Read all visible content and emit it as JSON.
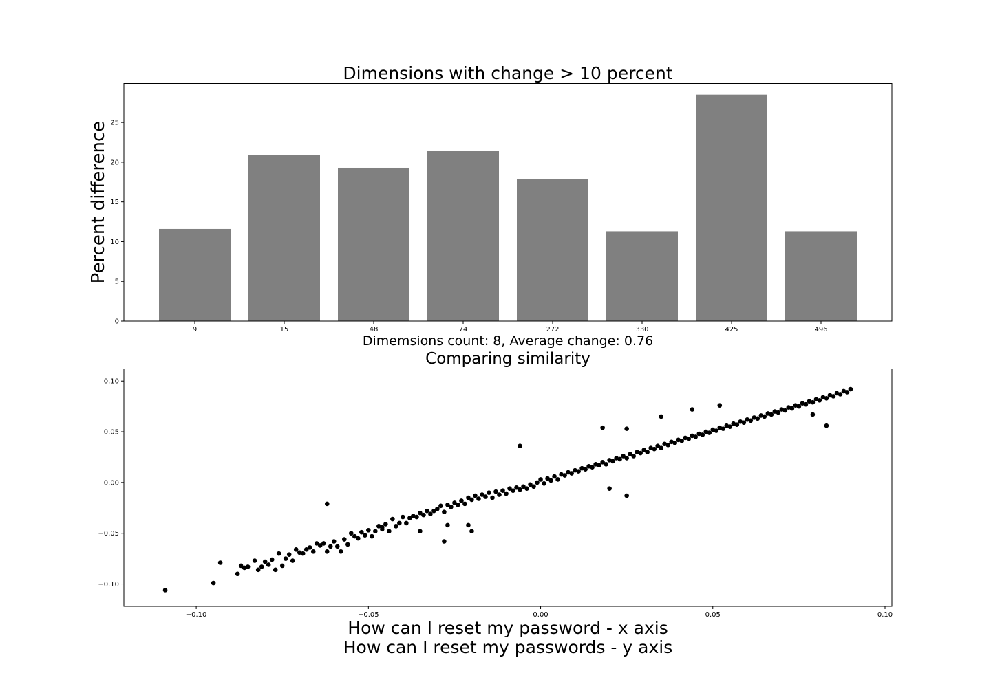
{
  "chart_data": [
    {
      "type": "bar",
      "title": "Dimensions with change > 10 percent",
      "xlabel": "Dimemsions count: 8, Average change: 0.76",
      "ylabel": "Percent difference",
      "categories": [
        "9",
        "15",
        "48",
        "74",
        "272",
        "330",
        "425",
        "496"
      ],
      "values": [
        11.6,
        20.9,
        19.3,
        21.4,
        17.9,
        11.3,
        28.5,
        11.3
      ],
      "ylim": [
        0,
        29.9
      ],
      "yticks": [
        0,
        5,
        10,
        15,
        20,
        25
      ],
      "bar_color": "#808080",
      "grid": false
    },
    {
      "type": "scatter",
      "title": "Comparing similarity",
      "xlabel": "How can I reset my password - x axis\nHow can I reset my passwords - y axis",
      "ylabel": "",
      "xlim": [
        -0.121,
        0.102
      ],
      "ylim": [
        -0.122,
        0.112
      ],
      "xticks": [
        -0.1,
        -0.05,
        0.0,
        0.05,
        0.1
      ],
      "yticks": [
        -0.1,
        -0.05,
        0.0,
        0.05,
        0.1
      ],
      "marker_color": "#000000",
      "grid": false,
      "x": [
        -0.109,
        -0.095,
        -0.093,
        -0.088,
        -0.087,
        -0.086,
        -0.085,
        -0.083,
        -0.082,
        -0.081,
        -0.08,
        -0.079,
        -0.078,
        -0.077,
        -0.076,
        -0.075,
        -0.074,
        -0.073,
        -0.072,
        -0.071,
        -0.07,
        -0.069,
        -0.068,
        -0.067,
        -0.066,
        -0.065,
        -0.064,
        -0.063,
        -0.062,
        -0.061,
        -0.06,
        -0.059,
        -0.058,
        -0.057,
        -0.056,
        -0.055,
        -0.054,
        -0.053,
        -0.052,
        -0.051,
        -0.05,
        -0.049,
        -0.048,
        -0.047,
        -0.046,
        -0.045,
        -0.044,
        -0.043,
        -0.042,
        -0.041,
        -0.04,
        -0.039,
        -0.038,
        -0.037,
        -0.036,
        -0.035,
        -0.034,
        -0.033,
        -0.032,
        -0.031,
        -0.03,
        -0.029,
        -0.028,
        -0.027,
        -0.026,
        -0.025,
        -0.024,
        -0.023,
        -0.022,
        -0.021,
        -0.02,
        -0.019,
        -0.018,
        -0.017,
        -0.016,
        -0.015,
        -0.014,
        -0.013,
        -0.012,
        -0.011,
        -0.01,
        -0.009,
        -0.008,
        -0.007,
        -0.006,
        -0.005,
        -0.004,
        -0.003,
        -0.002,
        -0.001,
        0.0,
        0.001,
        0.002,
        0.003,
        0.004,
        0.005,
        0.006,
        0.007,
        0.008,
        0.009,
        0.01,
        0.011,
        0.012,
        0.013,
        0.014,
        0.015,
        0.016,
        0.017,
        0.018,
        0.019,
        0.02,
        0.021,
        0.022,
        0.023,
        0.024,
        0.025,
        0.026,
        0.027,
        0.028,
        0.029,
        0.03,
        0.031,
        0.032,
        0.033,
        0.034,
        0.035,
        0.036,
        0.037,
        0.038,
        0.039,
        0.04,
        0.041,
        0.042,
        0.043,
        0.044,
        0.045,
        0.046,
        0.047,
        0.048,
        0.049,
        0.05,
        0.051,
        0.052,
        0.053,
        0.054,
        0.055,
        0.056,
        0.057,
        0.058,
        0.059,
        0.06,
        0.061,
        0.062,
        0.063,
        0.064,
        0.065,
        0.066,
        0.067,
        0.068,
        0.069,
        0.07,
        0.071,
        0.072,
        0.073,
        0.074,
        0.075,
        0.076,
        0.077,
        0.078,
        0.079,
        0.08,
        0.081,
        0.082,
        0.083,
        0.084,
        0.085,
        0.086,
        0.087,
        0.088,
        0.089,
        0.09,
        -0.062,
        -0.046,
        -0.035,
        -0.028,
        -0.02,
        -0.006,
        0.018,
        0.025,
        0.035,
        0.044,
        0.052,
        0.079,
        0.083,
        -0.027,
        -0.021,
        0.02,
        0.025
      ],
      "y": [
        -0.106,
        -0.099,
        -0.079,
        -0.09,
        -0.082,
        -0.084,
        -0.083,
        -0.077,
        -0.086,
        -0.083,
        -0.078,
        -0.081,
        -0.076,
        -0.086,
        -0.07,
        -0.082,
        -0.075,
        -0.071,
        -0.077,
        -0.066,
        -0.069,
        -0.07,
        -0.066,
        -0.064,
        -0.068,
        -0.06,
        -0.062,
        -0.06,
        -0.068,
        -0.063,
        -0.058,
        -0.063,
        -0.068,
        -0.056,
        -0.061,
        -0.05,
        -0.053,
        -0.055,
        -0.049,
        -0.052,
        -0.047,
        -0.053,
        -0.048,
        -0.043,
        -0.046,
        -0.041,
        -0.048,
        -0.036,
        -0.043,
        -0.04,
        -0.034,
        -0.04,
        -0.035,
        -0.033,
        -0.034,
        -0.03,
        -0.032,
        -0.028,
        -0.031,
        -0.028,
        -0.026,
        -0.023,
        -0.029,
        -0.022,
        -0.024,
        -0.02,
        -0.022,
        -0.018,
        -0.021,
        -0.015,
        -0.017,
        -0.013,
        -0.016,
        -0.012,
        -0.014,
        -0.01,
        -0.015,
        -0.009,
        -0.012,
        -0.008,
        -0.011,
        -0.006,
        -0.008,
        -0.005,
        -0.007,
        -0.004,
        -0.006,
        -0.002,
        -0.004,
        0.0,
        0.003,
        -0.001,
        0.004,
        0.002,
        0.006,
        0.003,
        0.008,
        0.007,
        0.01,
        0.009,
        0.012,
        0.011,
        0.014,
        0.013,
        0.016,
        0.015,
        0.018,
        0.017,
        0.02,
        0.018,
        0.022,
        0.021,
        0.024,
        0.023,
        0.026,
        0.024,
        0.028,
        0.026,
        0.03,
        0.029,
        0.032,
        0.03,
        0.034,
        0.033,
        0.036,
        0.034,
        0.038,
        0.037,
        0.04,
        0.039,
        0.042,
        0.041,
        0.044,
        0.043,
        0.046,
        0.045,
        0.048,
        0.047,
        0.05,
        0.049,
        0.052,
        0.051,
        0.054,
        0.053,
        0.056,
        0.055,
        0.058,
        0.057,
        0.06,
        0.059,
        0.062,
        0.061,
        0.064,
        0.063,
        0.066,
        0.065,
        0.068,
        0.067,
        0.07,
        0.069,
        0.072,
        0.071,
        0.074,
        0.073,
        0.076,
        0.075,
        0.078,
        0.077,
        0.08,
        0.079,
        0.082,
        0.081,
        0.084,
        0.083,
        0.086,
        0.085,
        0.088,
        0.087,
        0.09,
        0.089,
        0.092,
        -0.021,
        -0.044,
        -0.048,
        -0.058,
        -0.048,
        0.036,
        0.054,
        0.053,
        0.065,
        0.072,
        0.076,
        0.067,
        0.056,
        -0.042,
        -0.042,
        -0.006,
        -0.013
      ]
    }
  ]
}
